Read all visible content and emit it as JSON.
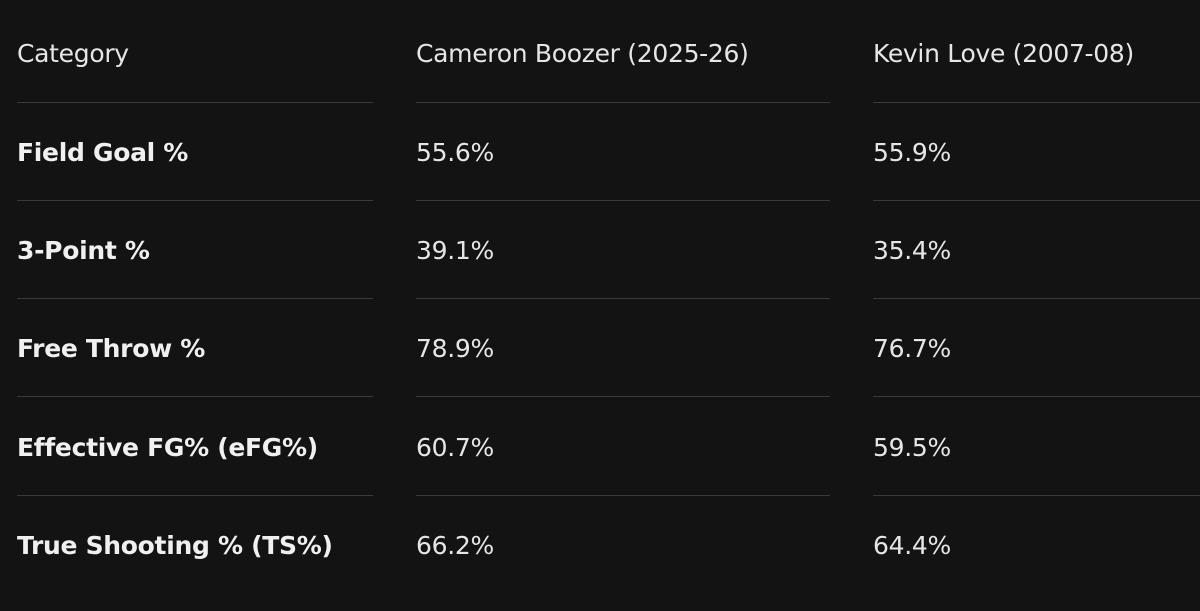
{
  "table": {
    "header": [
      "Category",
      "Cameron Boozer (2025-26)",
      "Kevin Love (2007-08)"
    ],
    "rows": [
      [
        "Field Goal %",
        "55.6%",
        "55.9%"
      ],
      [
        "3-Point %",
        "39.1%",
        "35.4%"
      ],
      [
        "Free Throw %",
        "78.9%",
        "76.7%"
      ],
      [
        "Effective FG% (eFG%)",
        "60.7%",
        "59.5%"
      ],
      [
        "True Shooting % (TS%)",
        "66.2%",
        "64.4%"
      ]
    ]
  }
}
